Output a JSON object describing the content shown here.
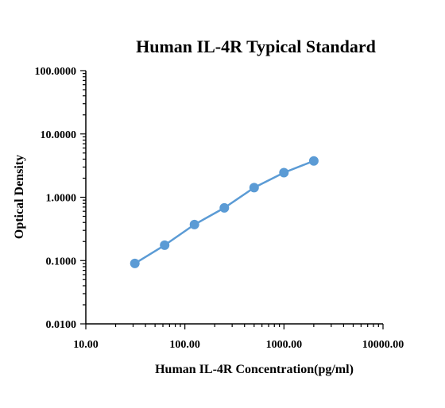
{
  "chart_data": {
    "type": "line",
    "title": "Human IL-4R Typical Standard",
    "xlabel": "Human IL-4R Concentration(pg/ml)",
    "ylabel": "Optical Density",
    "x_scale": "log",
    "y_scale": "log",
    "xlim": [
      10,
      10000
    ],
    "ylim": [
      0.01,
      100
    ],
    "x_ticks": [
      "10.00",
      "100.00",
      "1000.00",
      "10000.00"
    ],
    "y_ticks": [
      "0.0100",
      "0.1000",
      "1.0000",
      "10.0000",
      "100.0000"
    ],
    "grid": false,
    "legend": "none",
    "series": [
      {
        "color": "#5b9bd5",
        "points": [
          {
            "x": 31.25,
            "y": 0.09
          },
          {
            "x": 62.5,
            "y": 0.175
          },
          {
            "x": 125,
            "y": 0.37
          },
          {
            "x": 250,
            "y": 0.68
          },
          {
            "x": 500,
            "y": 1.42
          },
          {
            "x": 1000,
            "y": 2.45
          },
          {
            "x": 2000,
            "y": 3.75
          }
        ]
      }
    ]
  }
}
